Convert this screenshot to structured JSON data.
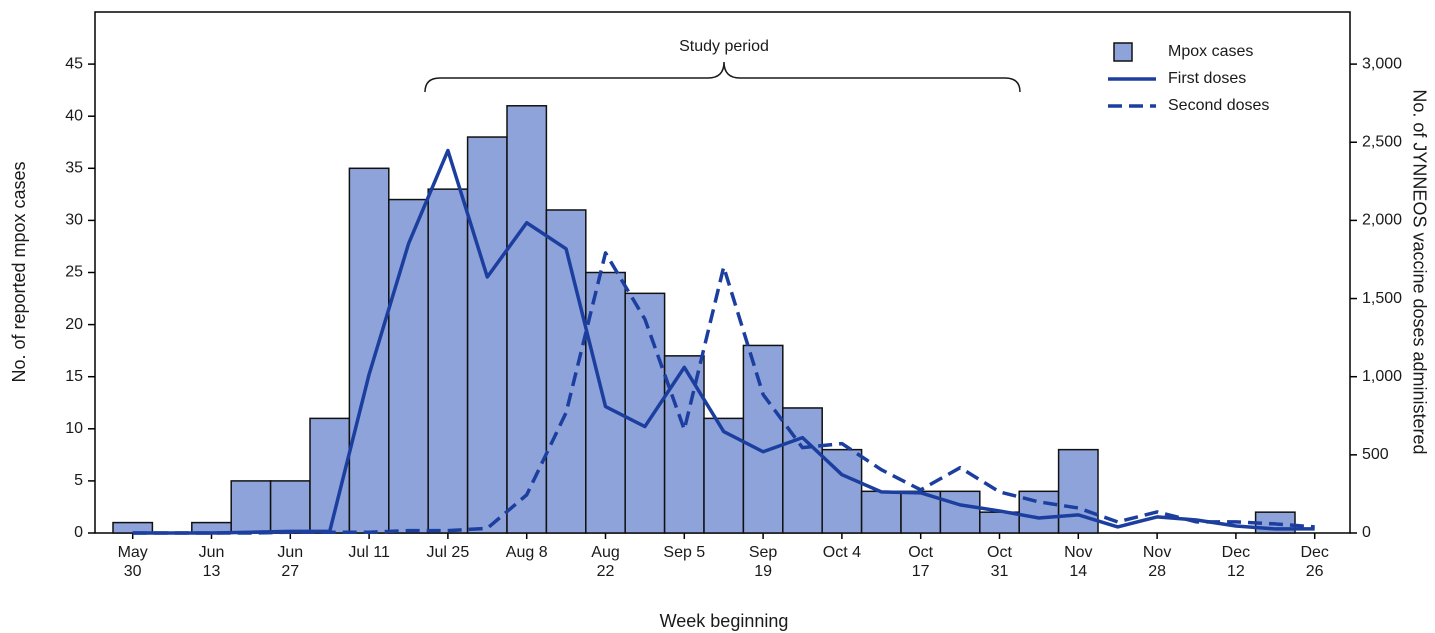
{
  "chart_data": {
    "type": "bar-line",
    "annotation": "Study period",
    "x_label": "Week beginning",
    "y_label": "No. of reported mpox cases",
    "y2_label": "No. of JYNNEOS vaccine doses administered",
    "categories": [
      "May 30",
      null,
      "Jun 13",
      null,
      "Jun 27",
      null,
      "Jul 11",
      null,
      "Jul 25",
      null,
      "Aug 8",
      null,
      "Aug 22",
      null,
      "Sep 5",
      null,
      "Sep 19",
      null,
      "Oct 4",
      null,
      "Oct 17",
      null,
      "Oct 31",
      null,
      "Nov 14",
      null,
      "Nov 28",
      null,
      "Dec 12",
      null,
      "Dec 26"
    ],
    "series": [
      {
        "name": "Mpox cases",
        "type": "bar",
        "color": "#8ea3d9",
        "values": [
          1,
          0,
          1,
          5,
          5,
          11,
          35,
          32,
          33,
          38,
          41,
          31,
          25,
          23,
          17,
          11,
          18,
          12,
          8,
          4,
          4,
          4,
          2,
          4,
          8,
          0,
          0,
          0,
          0,
          2,
          0
        ]
      },
      {
        "name": "First doses",
        "type": "line",
        "axis": "y2",
        "dashed": false,
        "color": "#1c3f9f",
        "values": [
          0,
          0,
          0,
          5,
          10,
          10,
          1015,
          1850,
          2447,
          1638,
          1985,
          1818,
          809,
          681,
          1060,
          649,
          520,
          610,
          373,
          263,
          257,
          180,
          141,
          96,
          116,
          39,
          103,
          83,
          45,
          26,
          26
        ]
      },
      {
        "name": "Second doses",
        "type": "line",
        "axis": "y2",
        "dashed": true,
        "color": "#1c3f9f",
        "values": [
          0,
          0,
          0,
          0,
          5,
          5,
          5,
          15,
          15,
          30,
          244,
          770,
          1792,
          1368,
          662,
          1702,
          886,
          546,
          572,
          405,
          276,
          418,
          263,
          199,
          160,
          71,
          135,
          71,
          71,
          58,
          39
        ]
      }
    ],
    "ylim": [
      0,
      50
    ],
    "yticks": [
      0,
      5,
      10,
      15,
      20,
      25,
      30,
      35,
      40,
      45
    ],
    "y2lim": [
      0,
      3333.33
    ],
    "y2ticks": [
      0,
      500,
      {
        "value": 1000,
        "label": "1,000"
      },
      {
        "value": 1500,
        "label": "1,500"
      },
      {
        "value": 2000,
        "label": "2,000"
      },
      {
        "value": 2500,
        "label": "2,500"
      },
      {
        "value": 3000,
        "label": "3,000"
      }
    ],
    "grid": false,
    "legend": "upper right"
  }
}
